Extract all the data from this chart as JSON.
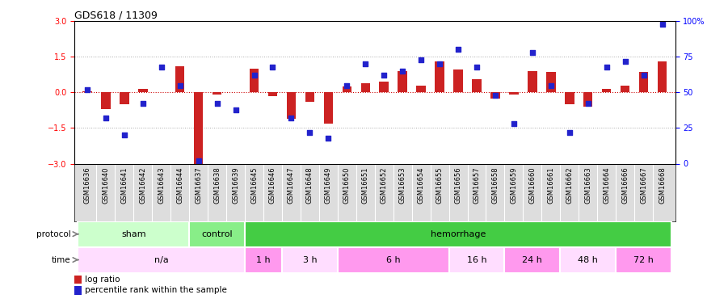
{
  "title": "GDS618 / 11309",
  "samples": [
    "GSM16636",
    "GSM16640",
    "GSM16641",
    "GSM16642",
    "GSM16643",
    "GSM16644",
    "GSM16637",
    "GSM16638",
    "GSM16639",
    "GSM16645",
    "GSM16646",
    "GSM16647",
    "GSM16648",
    "GSM16649",
    "GSM16650",
    "GSM16651",
    "GSM16652",
    "GSM16653",
    "GSM16654",
    "GSM16655",
    "GSM16656",
    "GSM16657",
    "GSM16658",
    "GSM16659",
    "GSM16660",
    "GSM16661",
    "GSM16662",
    "GSM16663",
    "GSM16664",
    "GSM16666",
    "GSM16667",
    "GSM16668"
  ],
  "log_ratio": [
    0.05,
    -0.7,
    -0.5,
    0.15,
    0.0,
    1.1,
    -3.1,
    -0.1,
    0.0,
    1.0,
    -0.15,
    -1.1,
    -0.4,
    -1.3,
    0.25,
    0.4,
    0.45,
    0.9,
    0.3,
    1.3,
    0.95,
    0.55,
    -0.25,
    -0.1,
    0.9,
    0.85,
    -0.5,
    -0.6,
    0.15,
    0.3,
    0.85,
    1.3
  ],
  "percentile_rank": [
    52,
    32,
    20,
    42,
    68,
    55,
    2,
    42,
    38,
    62,
    68,
    32,
    22,
    18,
    55,
    70,
    62,
    65,
    73,
    70,
    80,
    68,
    48,
    28,
    78,
    55,
    22,
    42,
    68,
    72,
    62,
    98
  ],
  "ylim_left": [
    -3,
    3
  ],
  "ylim_right": [
    0,
    100
  ],
  "yticks_left": [
    -3,
    -1.5,
    0,
    1.5,
    3
  ],
  "yticks_right": [
    0,
    25,
    50,
    75,
    100
  ],
  "bar_color": "#cc2222",
  "dot_color": "#2222cc",
  "hline_color": "#aaaaaa",
  "hline_y": [
    1.5,
    -1.5
  ],
  "zero_line_color": "#cc0000",
  "protocol_groups": [
    {
      "label": "sham",
      "start": 0,
      "end": 5,
      "color": "#ccffcc"
    },
    {
      "label": "control",
      "start": 6,
      "end": 8,
      "color": "#88ee88"
    },
    {
      "label": "hemorrhage",
      "start": 9,
      "end": 31,
      "color": "#44cc44"
    }
  ],
  "time_groups": [
    {
      "label": "n/a",
      "start": 0,
      "end": 8,
      "color": "#ffddff"
    },
    {
      "label": "1 h",
      "start": 9,
      "end": 10,
      "color": "#ff99ee"
    },
    {
      "label": "3 h",
      "start": 11,
      "end": 13,
      "color": "#ffddff"
    },
    {
      "label": "6 h",
      "start": 14,
      "end": 19,
      "color": "#ff99ee"
    },
    {
      "label": "16 h",
      "start": 20,
      "end": 22,
      "color": "#ffddff"
    },
    {
      "label": "24 h",
      "start": 23,
      "end": 25,
      "color": "#ff99ee"
    },
    {
      "label": "48 h",
      "start": 26,
      "end": 28,
      "color": "#ffddff"
    },
    {
      "label": "72 h",
      "start": 29,
      "end": 31,
      "color": "#ff99ee"
    }
  ],
  "xticklabel_bg": "#dddddd",
  "bg_color": "#ffffff",
  "ax_bg_color": "#ffffff",
  "tick_label_size": 6.0,
  "bar_width": 0.5,
  "dot_size": 14
}
